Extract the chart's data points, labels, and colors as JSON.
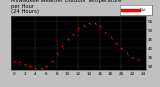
{
  "title": "Milwaukee Weather Outdoor Temperature\nper Hour\n(24 Hours)",
  "title_fontsize": 3.8,
  "plot_bg_color": "#000000",
  "hours": [
    0,
    1,
    2,
    3,
    4,
    5,
    6,
    7,
    8,
    9,
    10,
    11,
    12,
    13,
    14,
    15,
    16,
    17,
    18,
    19,
    20,
    21,
    22,
    23
  ],
  "temps": [
    33,
    32,
    31,
    30,
    29,
    29,
    30,
    33,
    37,
    41,
    45,
    48,
    51,
    53,
    54,
    54,
    52,
    49,
    46,
    43,
    40,
    37,
    35,
    34
  ],
  "dot_color_red": "#ff0000",
  "dot_color_black": "#000000",
  "grid_color": "#888888",
  "ylim": [
    28,
    58
  ],
  "xlim": [
    -0.5,
    24.5
  ],
  "tick_label_fontsize": 3.0,
  "ytick_values": [
    30,
    35,
    40,
    45,
    50,
    55
  ],
  "ytick_labels": [
    "30",
    "35",
    "40",
    "45",
    "50",
    "55"
  ],
  "xtick_values": [
    0,
    2,
    4,
    6,
    8,
    10,
    12,
    14,
    16,
    18,
    20,
    22,
    24
  ],
  "xtick_labels": [
    "0",
    "2",
    "4",
    "6",
    "8",
    "10",
    "12",
    "14",
    "16",
    "18",
    "20",
    "22",
    "24"
  ],
  "outer_bg": "#c0c0c0",
  "legend_red_color": "#ff0000",
  "legend_bg": "#ffffff"
}
